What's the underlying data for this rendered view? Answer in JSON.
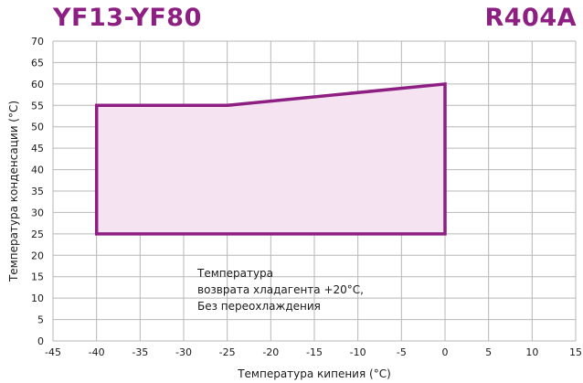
{
  "header": {
    "title_left": "YF13-YF80",
    "title_right": "R404A"
  },
  "colors": {
    "accent": "#8e1f82",
    "fill": "#f5e3f1",
    "grid": "#b7b7b7"
  },
  "chart_data": {
    "type": "area",
    "title": "YF13-YF80",
    "subtitle": "R404A",
    "xlabel": "Температура кипения (°C)",
    "ylabel": "Температура конденсации (°C)",
    "xlim": [
      -45,
      15
    ],
    "ylim": [
      0,
      70
    ],
    "x_ticks": [
      -45,
      -40,
      -35,
      -30,
      -25,
      -20,
      -15,
      -10,
      -5,
      0,
      5,
      10,
      15
    ],
    "y_ticks": [
      0,
      5,
      10,
      15,
      20,
      25,
      30,
      35,
      40,
      45,
      50,
      55,
      60,
      65,
      70
    ],
    "grid": true,
    "series": [
      {
        "name": "",
        "points": [
          {
            "x": -40,
            "y": 25
          },
          {
            "x": -40,
            "y": 55
          },
          {
            "x": -25,
            "y": 55
          },
          {
            "x": 0,
            "y": 60
          },
          {
            "x": 0,
            "y": 25
          }
        ]
      }
    ],
    "annotation": [
      "Температура",
      "возврата хладагента +20°C,",
      "Без переохлаждения"
    ]
  }
}
